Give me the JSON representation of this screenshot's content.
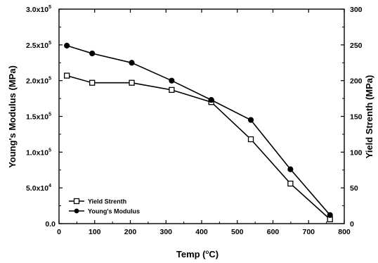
{
  "chart_data": {
    "type": "line",
    "title": "",
    "xlabel": "Temp (°C)",
    "xlabel_parts": {
      "before": "Temp (",
      "sup": "o",
      "after": "C)"
    },
    "ylabel_left": "Young's Modulus (MPa)",
    "ylabel_right": "Yield Strenth (MPa)",
    "xlim": [
      0,
      800
    ],
    "ylim_left": [
      0,
      300000
    ],
    "ylim_right": [
      0,
      300
    ],
    "x_ticks": [
      "0",
      "100",
      "200",
      "300",
      "400",
      "500",
      "600",
      "700",
      "800"
    ],
    "y_left_ticks": [
      {
        "mant": "0.0",
        "exp": ""
      },
      {
        "mant": "5.0x10",
        "exp": "4"
      },
      {
        "mant": "1.0x10",
        "exp": "5"
      },
      {
        "mant": "1.5x10",
        "exp": "5"
      },
      {
        "mant": "2.0x10",
        "exp": "5"
      },
      {
        "mant": "2.5x10",
        "exp": "5"
      },
      {
        "mant": "3.0x10",
        "exp": "5"
      }
    ],
    "y_right_ticks": [
      "0",
      "50",
      "100",
      "150",
      "200",
      "250",
      "300"
    ],
    "grid": false,
    "legend_position": "bottom-left",
    "series": [
      {
        "name": "Yield Strenth",
        "axis": "right",
        "marker": "open-square",
        "color": "#000000",
        "x": [
          22,
          93,
          204,
          316,
          427,
          538,
          649,
          760
        ],
        "y": [
          207,
          197,
          197,
          187,
          170,
          118,
          56,
          6
        ]
      },
      {
        "name": "Young's Modulus",
        "axis": "left",
        "marker": "filled-circle",
        "color": "#000000",
        "x": [
          22,
          93,
          204,
          316,
          427,
          538,
          649,
          760
        ],
        "y": [
          249000,
          238000,
          225000,
          200000,
          173000,
          145000,
          76000,
          12000
        ]
      }
    ]
  }
}
